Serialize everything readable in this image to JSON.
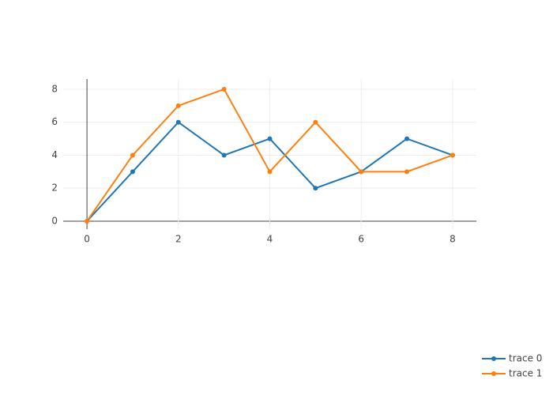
{
  "chart_data": {
    "type": "line",
    "x": [
      0,
      1,
      2,
      3,
      4,
      5,
      6,
      7,
      8
    ],
    "series": [
      {
        "name": "trace 0",
        "color": "#1f77b4",
        "values": [
          0,
          3,
          6,
          4,
          5,
          2,
          3,
          5,
          4
        ]
      },
      {
        "name": "trace 1",
        "color": "#ff7f0e",
        "values": [
          0,
          4,
          7,
          8,
          3,
          6,
          3,
          3,
          4
        ]
      }
    ],
    "xlim": [
      -0.52,
      8.52
    ],
    "xticks": [
      0,
      2,
      4,
      6,
      8
    ],
    "ylim": [
      -0.48,
      8.62
    ],
    "yticks": [
      0,
      2,
      4,
      6,
      8
    ],
    "grid": true,
    "legend": "bottom-right"
  }
}
